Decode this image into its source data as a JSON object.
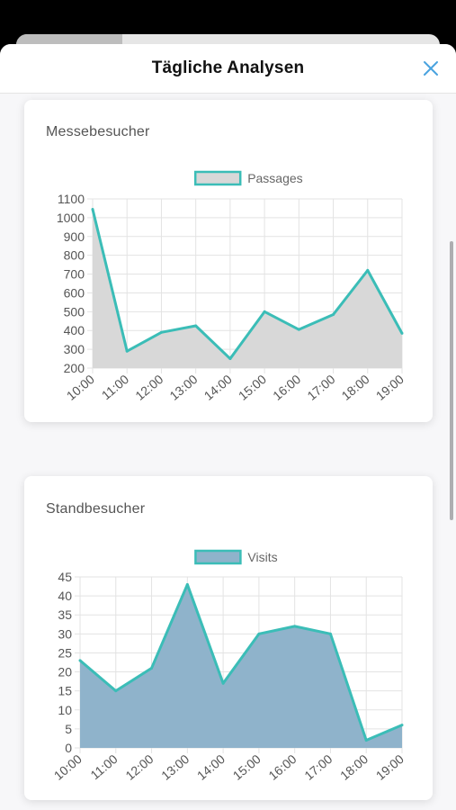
{
  "header": {
    "title": "Tägliche Analysen",
    "close_icon": "close-icon",
    "behind_progress": 0.25
  },
  "colors": {
    "accent": "#3bbdb7",
    "passages_fill": "#d8d8d8",
    "visits_fill": "#8fb3cb",
    "grid": "#e3e3e3",
    "close": "#4aa3df"
  },
  "cards": [
    {
      "title": "Messebesucher",
      "chart_data": {
        "type": "area",
        "categories": [
          "10:00",
          "11:00",
          "12:00",
          "13:00",
          "14:00",
          "15:00",
          "16:00",
          "17:00",
          "18:00",
          "19:00"
        ],
        "series": [
          {
            "name": "Passages",
            "values": [
              1045,
              290,
              390,
              425,
              250,
              500,
              405,
              485,
              720,
              385
            ]
          }
        ],
        "yticks": [
          "1100",
          "1000",
          "900",
          "800",
          "700",
          "600",
          "500",
          "400",
          "300",
          "200"
        ],
        "ylim": [
          200,
          1100
        ],
        "grid": true,
        "legend": "top-center"
      }
    },
    {
      "title": "Standbesucher",
      "chart_data": {
        "type": "area",
        "categories": [
          "10:00",
          "11:00",
          "12:00",
          "13:00",
          "14:00",
          "15:00",
          "16:00",
          "17:00",
          "18:00",
          "19:00"
        ],
        "series": [
          {
            "name": "Visits",
            "values": [
              23,
              15,
              21,
              43,
              17,
              30,
              32,
              30,
              2,
              6
            ]
          }
        ],
        "yticks": [
          "45",
          "40",
          "35",
          "30",
          "25",
          "20",
          "15",
          "10",
          "5",
          "0"
        ],
        "ylim": [
          0,
          45
        ],
        "grid": true,
        "legend": "top-center"
      }
    }
  ]
}
